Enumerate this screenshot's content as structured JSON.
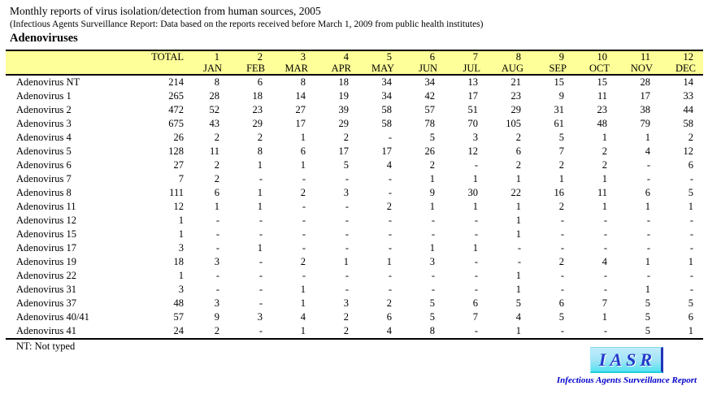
{
  "page": {
    "title": "Monthly reports of virus isolation/detection from human sources, 2005",
    "subtitle": "(Infectious Agents Surveillance Report: Data based on the reports received before March 1, 2009 from public health institutes)",
    "section_heading": "Adenoviruses",
    "footnote": "NT: Not typed"
  },
  "colors": {
    "table_header_bg": "#FFFF99",
    "logo_box_bg": "#9FE4F7",
    "logo_accent_border": "#2233BB",
    "logo_text": "#2238C8",
    "logo_caption_text": "#0000CC"
  },
  "logo": {
    "acronym": "IASR",
    "caption": "Infectious Agents Surveillance Report"
  },
  "chart_data": {
    "type": "table",
    "title": "Adenoviruses — monthly reports of virus isolation/detection from human sources, 2005",
    "total_label": "TOTAL",
    "month_numbers": [
      "1",
      "2",
      "3",
      "4",
      "5",
      "6",
      "7",
      "8",
      "9",
      "10",
      "11",
      "12"
    ],
    "month_names": [
      "JAN",
      "FEB",
      "MAR",
      "APR",
      "MAY",
      "JUN",
      "JUL",
      "AUG",
      "SEP",
      "OCT",
      "NOV",
      "DEC"
    ],
    "rows": [
      {
        "label": "Adenovirus NT",
        "total": "214",
        "monthly": [
          "8",
          "6",
          "8",
          "18",
          "34",
          "34",
          "13",
          "21",
          "15",
          "15",
          "28",
          "14"
        ]
      },
      {
        "label": "Adenovirus 1",
        "total": "265",
        "monthly": [
          "28",
          "18",
          "14",
          "19",
          "34",
          "42",
          "17",
          "23",
          "9",
          "11",
          "17",
          "33"
        ]
      },
      {
        "label": "Adenovirus 2",
        "total": "472",
        "monthly": [
          "52",
          "23",
          "27",
          "39",
          "58",
          "57",
          "51",
          "29",
          "31",
          "23",
          "38",
          "44"
        ]
      },
      {
        "label": "Adenovirus 3",
        "total": "675",
        "monthly": [
          "43",
          "29",
          "17",
          "29",
          "58",
          "78",
          "70",
          "105",
          "61",
          "48",
          "79",
          "58"
        ]
      },
      {
        "label": "Adenovirus 4",
        "total": "26",
        "monthly": [
          "2",
          "2",
          "1",
          "2",
          "-",
          "5",
          "3",
          "2",
          "5",
          "1",
          "1",
          "2"
        ]
      },
      {
        "label": "Adenovirus 5",
        "total": "128",
        "monthly": [
          "11",
          "8",
          "6",
          "17",
          "17",
          "26",
          "12",
          "6",
          "7",
          "2",
          "4",
          "12"
        ]
      },
      {
        "label": "Adenovirus 6",
        "total": "27",
        "monthly": [
          "2",
          "1",
          "1",
          "5",
          "4",
          "2",
          "-",
          "2",
          "2",
          "2",
          "-",
          "6"
        ]
      },
      {
        "label": "Adenovirus 7",
        "total": "7",
        "monthly": [
          "2",
          "-",
          "-",
          "-",
          "-",
          "1",
          "1",
          "1",
          "1",
          "1",
          "-",
          "-"
        ]
      },
      {
        "label": "Adenovirus 8",
        "total": "111",
        "monthly": [
          "6",
          "1",
          "2",
          "3",
          "-",
          "9",
          "30",
          "22",
          "16",
          "11",
          "6",
          "5"
        ]
      },
      {
        "label": "Adenovirus 11",
        "total": "12",
        "monthly": [
          "1",
          "1",
          "-",
          "-",
          "2",
          "1",
          "1",
          "1",
          "2",
          "1",
          "1",
          "1"
        ]
      },
      {
        "label": "Adenovirus 12",
        "total": "1",
        "monthly": [
          "-",
          "-",
          "-",
          "-",
          "-",
          "-",
          "-",
          "1",
          "-",
          "-",
          "-",
          "-"
        ]
      },
      {
        "label": "Adenovirus 15",
        "total": "1",
        "monthly": [
          "-",
          "-",
          "-",
          "-",
          "-",
          "-",
          "-",
          "1",
          "-",
          "-",
          "-",
          "-"
        ]
      },
      {
        "label": "Adenovirus 17",
        "total": "3",
        "monthly": [
          "-",
          "1",
          "-",
          "-",
          "-",
          "1",
          "1",
          "-",
          "-",
          "-",
          "-",
          "-"
        ]
      },
      {
        "label": "Adenovirus 19",
        "total": "18",
        "monthly": [
          "3",
          "-",
          "2",
          "1",
          "1",
          "3",
          "-",
          "-",
          "2",
          "4",
          "1",
          "1"
        ]
      },
      {
        "label": "Adenovirus 22",
        "total": "1",
        "monthly": [
          "-",
          "-",
          "-",
          "-",
          "-",
          "-",
          "-",
          "1",
          "-",
          "-",
          "-",
          "-"
        ]
      },
      {
        "label": "Adenovirus 31",
        "total": "3",
        "monthly": [
          "-",
          "-",
          "1",
          "-",
          "-",
          "-",
          "-",
          "1",
          "-",
          "-",
          "1",
          "-"
        ]
      },
      {
        "label": "Adenovirus 37",
        "total": "48",
        "monthly": [
          "3",
          "-",
          "1",
          "3",
          "2",
          "5",
          "6",
          "5",
          "6",
          "7",
          "5",
          "5"
        ]
      },
      {
        "label": "Adenovirus 40/41",
        "total": "57",
        "monthly": [
          "9",
          "3",
          "4",
          "2",
          "6",
          "5",
          "7",
          "4",
          "5",
          "1",
          "5",
          "6"
        ]
      },
      {
        "label": "Adenovirus 41",
        "total": "24",
        "monthly": [
          "2",
          "-",
          "1",
          "2",
          "4",
          "8",
          "-",
          "1",
          "-",
          "-",
          "5",
          "1"
        ]
      }
    ]
  }
}
